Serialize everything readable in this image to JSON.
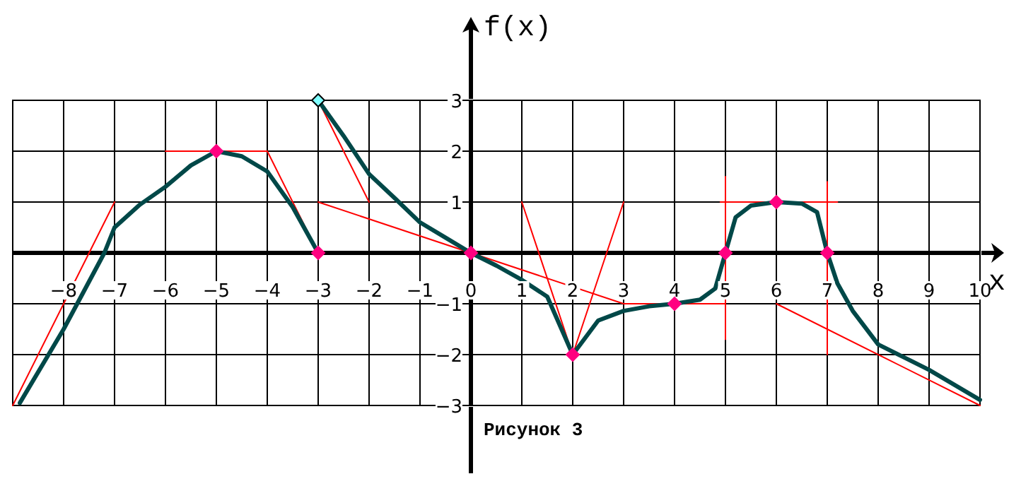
{
  "chart_data": {
    "type": "line",
    "xlabel": "x",
    "ylabel": "f(x)",
    "annotations": [
      "Рисунок 3"
    ],
    "xlim": [
      -9,
      10
    ],
    "ylim": [
      -3,
      3
    ],
    "xticks": [
      -8,
      -7,
      -6,
      -5,
      -4,
      -3,
      -2,
      -1,
      0,
      1,
      2,
      3,
      4,
      5,
      6,
      7,
      8,
      9,
      10
    ],
    "yticks": [
      -3,
      -2,
      -1,
      1,
      2,
      3
    ],
    "grid": true,
    "line_style": "solid",
    "series": [
      {
        "type": "line",
        "color": "#ff0000",
        "x": [
          -9,
          -7
        ],
        "values": [
          -3,
          1
        ]
      },
      {
        "type": "line",
        "color": "#ff0000",
        "x": [
          -6,
          -4
        ],
        "values": [
          2,
          2
        ]
      },
      {
        "type": "line",
        "color": "#ff0000",
        "x": [
          -4,
          -3
        ],
        "values": [
          2,
          0
        ]
      },
      {
        "type": "line",
        "color": "#ff0000",
        "x": [
          -3,
          -2
        ],
        "values": [
          3,
          1
        ]
      },
      {
        "type": "line",
        "color": "#ff0000",
        "x": [
          -3,
          3,
          5
        ],
        "values": [
          1,
          -1,
          -1
        ]
      },
      {
        "type": "line",
        "color": "#ff0000",
        "x": [
          1,
          2,
          3
        ],
        "values": [
          1,
          -2,
          1
        ]
      },
      {
        "type": "line",
        "color": "#ff0000",
        "x": [
          5,
          5
        ],
        "values": [
          1.5,
          -1.7
        ]
      },
      {
        "type": "line",
        "color": "#ff0000",
        "x": [
          4.9,
          7.2
        ],
        "values": [
          1,
          1
        ]
      },
      {
        "type": "line",
        "color": "#ff0000",
        "x": [
          7,
          7
        ],
        "values": [
          1.4,
          -2
        ]
      },
      {
        "type": "line",
        "color": "#ff0000",
        "x": [
          6,
          10
        ],
        "values": [
          -1,
          -3
        ]
      },
      {
        "type": "line",
        "color": "#004848",
        "x": [
          -8.86,
          -8,
          -7.2,
          -7,
          -6.5,
          -6,
          -5.5,
          -5,
          -4.5,
          -4,
          -3.5,
          -3
        ],
        "values": [
          -2.95,
          -1.5,
          0,
          0.5,
          0.95,
          1.3,
          1.72,
          2,
          1.9,
          1.6,
          0.9,
          0
        ]
      },
      {
        "type": "line",
        "color": "#004848",
        "x": [
          -3,
          -2.5,
          -2,
          -1.5,
          -1,
          -0.5,
          0,
          0.5,
          1,
          1.5,
          2,
          2.5,
          3,
          3.5,
          4,
          4.5,
          4.8,
          5,
          5.2,
          5.5,
          6,
          6.5,
          6.8,
          7,
          7.2,
          7.5,
          8,
          8.5,
          9,
          10
        ],
        "values": [
          3,
          2.3,
          1.55,
          1.08,
          0.6,
          0.3,
          0,
          -0.25,
          -0.53,
          -0.86,
          -2,
          -1.33,
          -1.14,
          -1.05,
          -1,
          -0.92,
          -0.7,
          0,
          0.7,
          0.93,
          1,
          0.97,
          0.8,
          0,
          -0.6,
          -1.14,
          -1.8,
          -2.05,
          -2.3,
          -2.89
        ]
      },
      {
        "type": "scatter",
        "marker": "diamond",
        "color": "#ff0080",
        "x": [
          -5,
          -3,
          0,
          2,
          4,
          5,
          6,
          7
        ],
        "values": [
          2,
          0,
          0,
          -2,
          -1,
          0,
          1,
          0
        ]
      },
      {
        "type": "scatter",
        "marker": "diamond",
        "color": "#80ffff",
        "x": [
          -3
        ],
        "values": [
          3
        ]
      }
    ]
  }
}
